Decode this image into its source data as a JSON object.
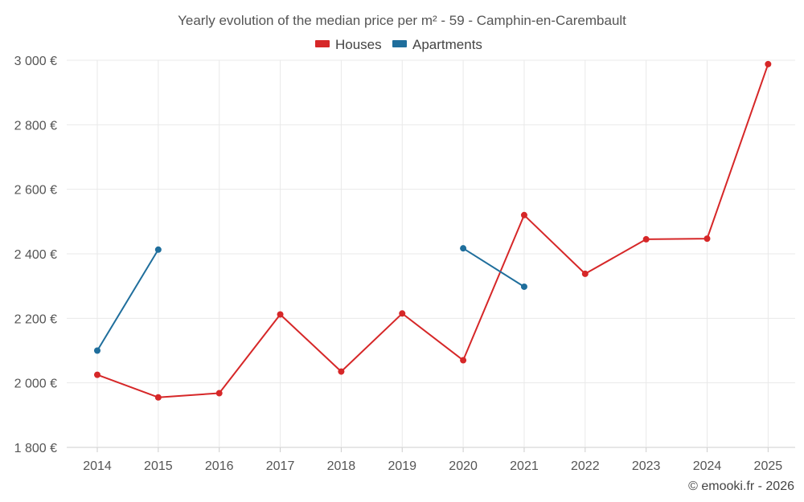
{
  "chart_data": {
    "type": "line",
    "title": "Yearly evolution of the median price per m² - 59 - Camphin-en-Carembault",
    "x": [
      "2014",
      "2015",
      "2016",
      "2017",
      "2018",
      "2019",
      "2020",
      "2021",
      "2022",
      "2023",
      "2024",
      "2025"
    ],
    "y_ticks": [
      "1 800 €",
      "2 000 €",
      "2 200 €",
      "2 400 €",
      "2 600 €",
      "2 800 €",
      "3 000 €"
    ],
    "ylim": [
      1800,
      3000
    ],
    "grid": true,
    "legend_position": "top-center",
    "series": [
      {
        "name": "Houses",
        "color": "#d62728",
        "values": [
          2025,
          1955,
          1968,
          2212,
          2035,
          2215,
          2070,
          2520,
          2338,
          2445,
          2447,
          2988
        ]
      },
      {
        "name": "Apartments",
        "color": "#1f6e9c",
        "values": [
          2100,
          2413,
          null,
          null,
          null,
          null,
          2417,
          2298,
          null,
          null,
          null,
          null
        ]
      }
    ]
  },
  "credit": "© emooki.fr - 2026"
}
